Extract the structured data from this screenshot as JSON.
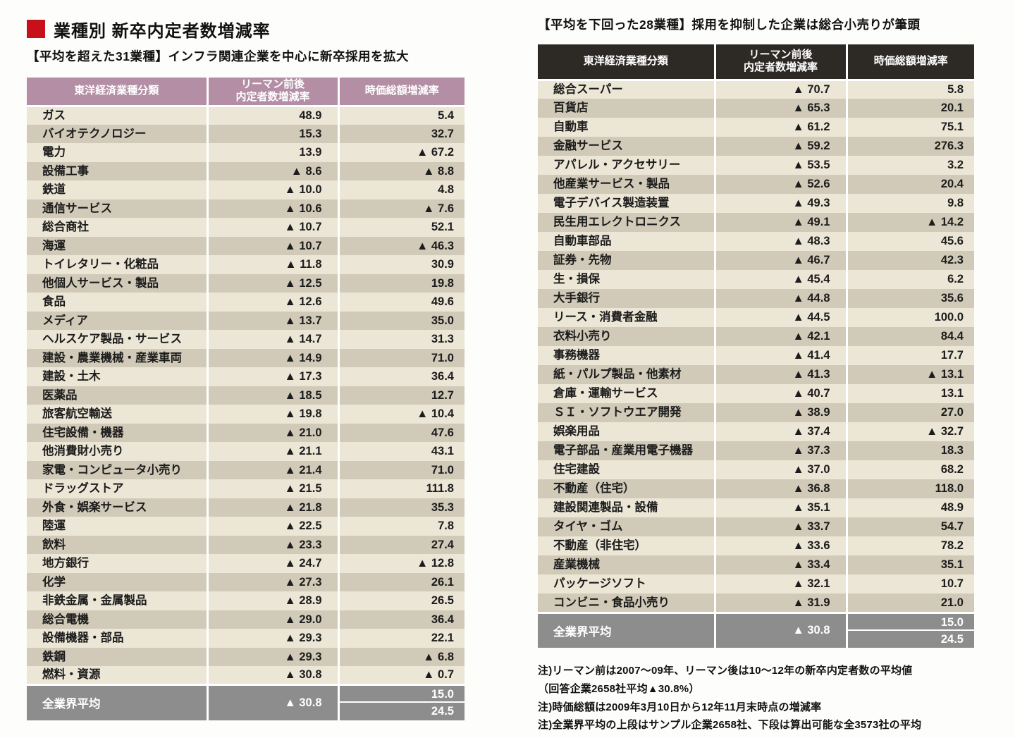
{
  "title": {
    "text": "業種別 新卒内定者数増減率"
  },
  "colors": {
    "accent_red": "#c8101a",
    "left_header_bg": "#b38ea4",
    "right_header_bg": "#2d2a26",
    "row_light": "#ece6d6",
    "row_dark": "#d1cab8",
    "average_row_bg": "#8d8d8d",
    "text": "#1c1c1c"
  },
  "negative_marker": "▲",
  "chart_data": [
    {
      "type": "table",
      "title": "【平均を超えた31業種】インフラ関連企業を中心に新卒採用を拡大",
      "header": {
        "col1": "東洋経済業種分類",
        "col2_line1": "リーマン前後",
        "col2_line2": "内定者数増減率",
        "col3": "時価総額増減率"
      },
      "rows": [
        [
          "ガス",
          "48.9",
          "5.4"
        ],
        [
          "バイオテクノロジー",
          "15.3",
          "32.7"
        ],
        [
          "電力",
          "13.9",
          "-67.2"
        ],
        [
          "設備工事",
          "-8.6",
          "-8.8"
        ],
        [
          "鉄道",
          "-10.0",
          "4.8"
        ],
        [
          "通信サービス",
          "-10.6",
          "-7.6"
        ],
        [
          "総合商社",
          "-10.7",
          "52.1"
        ],
        [
          "海運",
          "-10.7",
          "-46.3"
        ],
        [
          "トイレタリー・化粧品",
          "-11.8",
          "30.9"
        ],
        [
          "他個人サービス・製品",
          "-12.5",
          "19.8"
        ],
        [
          "食品",
          "-12.6",
          "49.6"
        ],
        [
          "メディア",
          "-13.7",
          "35.0"
        ],
        [
          "ヘルスケア製品・サービス",
          "-14.7",
          "31.3"
        ],
        [
          "建設・農業機械・産業車両",
          "-14.9",
          "71.0"
        ],
        [
          "建設・土木",
          "-17.3",
          "36.4"
        ],
        [
          "医薬品",
          "-18.5",
          "12.7"
        ],
        [
          "旅客航空輸送",
          "-19.8",
          "-10.4"
        ],
        [
          "住宅設備・機器",
          "-21.0",
          "47.6"
        ],
        [
          "他消費財小売り",
          "-21.1",
          "43.1"
        ],
        [
          "家電・コンピュータ小売り",
          "-21.4",
          "71.0"
        ],
        [
          "ドラッグストア",
          "-21.5",
          "111.8"
        ],
        [
          "外食・娯楽サービス",
          "-21.8",
          "35.3"
        ],
        [
          "陸運",
          "-22.5",
          "7.8"
        ],
        [
          "飲料",
          "-23.3",
          "27.4"
        ],
        [
          "地方銀行",
          "-24.7",
          "-12.8"
        ],
        [
          "化学",
          "-27.3",
          "26.1"
        ],
        [
          "非鉄金属・金属製品",
          "-28.9",
          "26.5"
        ],
        [
          "総合電機",
          "-29.0",
          "36.4"
        ],
        [
          "設備機器・部品",
          "-29.3",
          "22.1"
        ],
        [
          "鉄鋼",
          "-29.3",
          "-6.8"
        ],
        [
          "燃料・資源",
          "-30.8",
          "-0.7"
        ]
      ],
      "average": {
        "label": "全業界平均",
        "offers": "-30.8",
        "market_cap": [
          "15.0",
          "24.5"
        ]
      }
    },
    {
      "type": "table",
      "title": "【平均を下回った28業種】採用を抑制した企業は総合小売りが筆頭",
      "header": {
        "col1": "東洋経済業種分類",
        "col2_line1": "リーマン前後",
        "col2_line2": "内定者数増減率",
        "col3": "時価総額増減率"
      },
      "rows": [
        [
          "総合スーパー",
          "-70.7",
          "5.8"
        ],
        [
          "百貨店",
          "-65.3",
          "20.1"
        ],
        [
          "自動車",
          "-61.2",
          "75.1"
        ],
        [
          "金融サービス",
          "-59.2",
          "276.3"
        ],
        [
          "アパレル・アクセサリー",
          "-53.5",
          "3.2"
        ],
        [
          "他産業サービス・製品",
          "-52.6",
          "20.4"
        ],
        [
          "電子デバイス製造装置",
          "-49.3",
          "9.8"
        ],
        [
          "民生用エレクトロニクス",
          "-49.1",
          "-14.2"
        ],
        [
          "自動車部品",
          "-48.3",
          "45.6"
        ],
        [
          "証券・先物",
          "-46.7",
          "42.3"
        ],
        [
          "生・損保",
          "-45.4",
          "6.2"
        ],
        [
          "大手銀行",
          "-44.8",
          "35.6"
        ],
        [
          "リース・消費者金融",
          "-44.5",
          "100.0"
        ],
        [
          "衣料小売り",
          "-42.1",
          "84.4"
        ],
        [
          "事務機器",
          "-41.4",
          "17.7"
        ],
        [
          "紙・パルプ製品・他素材",
          "-41.3",
          "-13.1"
        ],
        [
          "倉庫・運輸サービス",
          "-40.7",
          "13.1"
        ],
        [
          "ＳＩ・ソフトウエア開発",
          "-38.9",
          "27.0"
        ],
        [
          "娯楽用品",
          "-37.4",
          "-32.7"
        ],
        [
          "電子部品・産業用電子機器",
          "-37.3",
          "18.3"
        ],
        [
          "住宅建設",
          "-37.0",
          "68.2"
        ],
        [
          "不動産（住宅）",
          "-36.8",
          "118.0"
        ],
        [
          "建設関連製品・設備",
          "-35.1",
          "48.9"
        ],
        [
          "タイヤ・ゴム",
          "-33.7",
          "54.7"
        ],
        [
          "不動産（非住宅）",
          "-33.6",
          "78.2"
        ],
        [
          "産業機械",
          "-33.4",
          "35.1"
        ],
        [
          "パッケージソフト",
          "-32.1",
          "10.7"
        ],
        [
          "コンビニ・食品小売り",
          "-31.9",
          "21.0"
        ]
      ],
      "average": {
        "label": "全業界平均",
        "offers": "-30.8",
        "market_cap": [
          "15.0",
          "24.5"
        ]
      }
    }
  ],
  "notes": [
    "注)リーマン前は2007～09年、リーマン後は10～12年の新卒内定者数の平均値",
    "（回答企業2658社平均▲30.8%）",
    "注)時価総額は2009年3月10日から12年11月末時点の増減率",
    "注)全業界平均の上段はサンプル企業2658社、下段は算出可能な全3573社の平均"
  ]
}
